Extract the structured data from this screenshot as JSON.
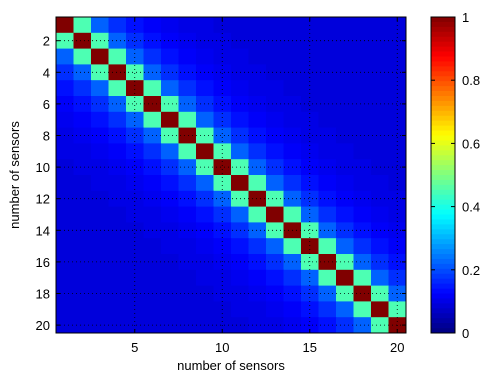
{
  "chart_data": {
    "type": "heatmap",
    "xlabel": "number of sensors",
    "ylabel": "number of sensors",
    "rows": 20,
    "cols": 20,
    "x_ticks": [
      5,
      10,
      15,
      20
    ],
    "y_ticks": [
      2,
      4,
      6,
      8,
      10,
      12,
      14,
      16,
      18,
      20
    ],
    "clim": [
      0,
      1
    ],
    "colorbar_ticks": [
      0,
      0.2,
      0.4,
      0.6,
      0.8,
      1
    ],
    "colormap": "jet",
    "grid": "dotted",
    "values_by_offset": [
      1.0,
      0.45,
      0.22,
      0.17,
      0.14,
      0.12,
      0.11,
      0.1,
      0.1,
      0.09,
      0.09,
      0.09,
      0.09,
      0.09,
      0.09,
      0.09,
      0.09,
      0.09,
      0.09,
      0.09
    ]
  }
}
